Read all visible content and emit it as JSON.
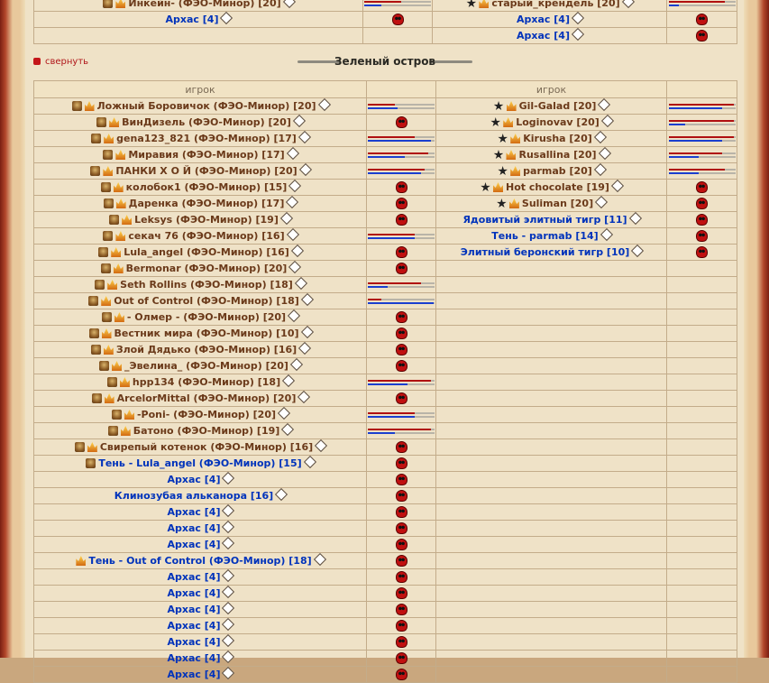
{
  "top": {
    "left_rows": [
      {
        "name": "Инкейн- (ФЭО-Минор) [20]",
        "hp": [
          0.55,
          0.25
        ],
        "icons": "clan-rank"
      },
      {
        "name": "Архас [4]",
        "blue": true,
        "dead": true
      }
    ],
    "right_rows": [
      {
        "name": "старый_крендель [20]",
        "hp": [
          0.85,
          0.15
        ],
        "icons": "star-rank"
      },
      {
        "name": "Архас [4]",
        "blue": true,
        "dead": true
      },
      {
        "name": "Архас [4]",
        "blue": true,
        "dead": true
      }
    ]
  },
  "collapse_label": "свернуть",
  "section_title": "Зеленый остров",
  "col_header_left": "игрок",
  "col_header_right": "игрок",
  "left_rows": [
    {
      "name": "Ложный Боровичок (ФЭО-Минор) [20]",
      "icons": "clan-rank",
      "hp": [
        0.4,
        0.45
      ]
    },
    {
      "name": "ВинДизель (ФЭО-Минор) [20]",
      "icons": "clan-rank",
      "dead": true
    },
    {
      "name": "gena123_821 (ФЭО-Минор) [17]",
      "icons": "clan-rank",
      "hp": [
        0.7,
        0.95
      ]
    },
    {
      "name": "Мирaвия (ФЭО-Минор) [17]",
      "icons": "clan-rank",
      "hp": [
        0.9,
        0.55
      ]
    },
    {
      "name": "ПАНКИ Х О Й (ФЭО-Минор) [20]",
      "icons": "clan-rank",
      "hp": [
        0.85,
        0.8
      ]
    },
    {
      "name": "колобок1 (ФЭО-Минор) [15]",
      "icons": "clan-rank",
      "dead": true
    },
    {
      "name": "Даренка (ФЭО-Минор) [17]",
      "icons": "clan-rank",
      "dead": true
    },
    {
      "name": "Leksys (ФЭО-Минор) [19]",
      "icons": "clan-rank",
      "dead": true
    },
    {
      "name": "секач 76 (ФЭО-Минор) [16]",
      "icons": "clan-rank",
      "hp": [
        0.7,
        0.7
      ]
    },
    {
      "name": "Lula_angel (ФЭО-Минор) [16]",
      "icons": "clan-rank",
      "dead": true
    },
    {
      "name": "Bermonar (ФЭО-Минор) [20]",
      "icons": "clan-rank",
      "dead": true
    },
    {
      "name": "Seth Rollins (ФЭО-Минор) [18]",
      "icons": "clan-rank",
      "hp": [
        0.8,
        0.3
      ]
    },
    {
      "name": "Out of Control (ФЭО-Минор) [18]",
      "icons": "clan-rank",
      "hp": [
        0.2,
        0.98
      ]
    },
    {
      "name": "- Олмер - (ФЭО-Минор) [20]",
      "icons": "clan-rank",
      "dead": true
    },
    {
      "name": "Вестник мира (ФЭО-Минор) [10]",
      "icons": "clan-rank",
      "dead": true
    },
    {
      "name": "Злой Дядько (ФЭО-Минор) [16]",
      "icons": "clan-rank",
      "dead": true
    },
    {
      "name": "_Эвелина_ (ФЭО-Минор) [20]",
      "icons": "clan-rank",
      "dead": true
    },
    {
      "name": "hpp134 (ФЭО-Минор) [18]",
      "icons": "clan-rank",
      "hp": [
        0.95,
        0.6
      ]
    },
    {
      "name": "ArcelorMittal (ФЭО-Минор) [20]",
      "icons": "clan-rank",
      "dead": true
    },
    {
      "name": "-Poni- (ФЭО-Минор) [20]",
      "icons": "clan-rank",
      "hp": [
        0.7,
        0.7
      ]
    },
    {
      "name": "Батоно (ФЭО-Минор) [19]",
      "icons": "clan-rank",
      "hp": [
        0.95,
        0.4
      ]
    },
    {
      "name": "Свирепый котенок (ФЭО-Минор) [16]",
      "icons": "clan-rank",
      "dead": true
    },
    {
      "name": "Тень - Lula_angel (ФЭО-Минор) [15]",
      "blue": true,
      "icons": "clan",
      "dead": true
    },
    {
      "name": "Архас [4]",
      "blue": true,
      "dead": true
    },
    {
      "name": "Клинозубая алькaнора [16]",
      "blue": true,
      "dead": true
    },
    {
      "name": "Архас [4]",
      "blue": true,
      "dead": true
    },
    {
      "name": "Архас [4]",
      "blue": true,
      "dead": true
    },
    {
      "name": "Архас [4]",
      "blue": true,
      "dead": true
    },
    {
      "name": "Тень - Out of Control (ФЭО-Минор) [18]",
      "blue": true,
      "icons": "rank",
      "dead": true
    },
    {
      "name": "Архас [4]",
      "blue": true,
      "dead": true
    },
    {
      "name": "Архас [4]",
      "blue": true,
      "dead": true
    },
    {
      "name": "Архас [4]",
      "blue": true,
      "dead": true
    },
    {
      "name": "Архас [4]",
      "blue": true,
      "dead": true
    },
    {
      "name": "Архас [4]",
      "blue": true,
      "dead": true
    },
    {
      "name": "Архас [4]",
      "blue": true,
      "dead": true
    },
    {
      "name": "Архас [4]",
      "blue": true,
      "dead": true
    }
  ],
  "right_rows": [
    {
      "name": "Gil-Galad [20]",
      "icons": "star-rank",
      "hp": [
        0.98,
        0.8
      ]
    },
    {
      "name": "Loginovav [20]",
      "icons": "star-rank",
      "hp": [
        0.98,
        0.25
      ]
    },
    {
      "name": "Kirusha [20]",
      "icons": "star-rank",
      "hp": [
        0.98,
        0.8
      ]
    },
    {
      "name": "Rusallina [20]",
      "icons": "star-rank",
      "hp": [
        0.8,
        0.45
      ]
    },
    {
      "name": "parmab [20]",
      "icons": "star-rank",
      "hp": [
        0.85,
        0.45
      ]
    },
    {
      "name": "Hot chocolate [19]",
      "icons": "star-rank",
      "dead": true
    },
    {
      "name": "Suliman [20]",
      "icons": "star-rank",
      "dead": true
    },
    {
      "name": "Ядовитый элитный тигр [11]",
      "blue": true,
      "dead": true
    },
    {
      "name": "Тень - parmab [14]",
      "blue": true,
      "dead": true
    },
    {
      "name": "Элитный беронский тигр [10]",
      "blue": true,
      "dead": true
    }
  ]
}
